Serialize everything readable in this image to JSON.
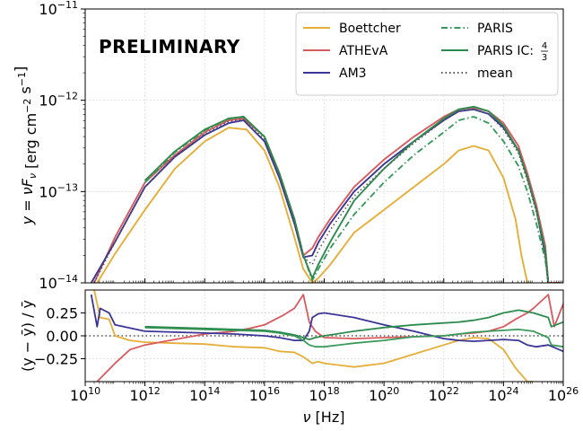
{
  "figure": {
    "watermark": "PRELIMINARY",
    "watermark_color": "#ec8f8f"
  },
  "chart_data": [
    {
      "type": "line",
      "panel": "top",
      "xlabel": "ν [Hz]",
      "ylabel": "y = νF_ν [erg cm⁻² s⁻¹]",
      "x_scale": "log",
      "y_scale": "log",
      "xlim": [
        10000000000.0,
        1e+26
      ],
      "ylim": [
        1e-14,
        1e-11
      ],
      "x_tick_exponents": [
        10,
        12,
        14,
        16,
        18,
        20,
        22,
        24,
        26
      ],
      "y_tick_exponents": [
        -11,
        -12,
        -13,
        -14
      ],
      "grid": true,
      "legend_position": "top-right",
      "series": [
        {
          "name": "Boettcher",
          "color": "#e5ae38",
          "dash": "solid",
          "log_x": [
            10.4,
            11,
            12,
            13,
            14,
            14.8,
            15.4,
            16,
            16.5,
            17,
            17.3,
            17.6,
            17.8,
            18.2,
            19,
            20,
            21,
            22,
            22.5,
            23,
            23.5,
            24,
            24.4,
            24.6,
            24.8
          ],
          "log_y": [
            -14.0,
            -13.68,
            -13.2,
            -12.75,
            -12.45,
            -12.3,
            -12.32,
            -12.55,
            -12.95,
            -13.5,
            -13.85,
            -14.0,
            -13.95,
            -13.8,
            -13.45,
            -13.2,
            -12.95,
            -12.7,
            -12.55,
            -12.5,
            -12.55,
            -12.85,
            -13.3,
            -13.7,
            -14.0
          ]
        },
        {
          "name": "ATHEvA",
          "color": "#d85a5e",
          "dash": "solid",
          "log_x": [
            10.3,
            11,
            12,
            13,
            14,
            14.8,
            15.3,
            16,
            16.5,
            17,
            17.3,
            17.6,
            17.8,
            18.2,
            19,
            20,
            21,
            22,
            22.5,
            23,
            23.5,
            24,
            24.5,
            24.8,
            25.1,
            25.4,
            25.5,
            25.9
          ],
          "log_y": [
            -14.0,
            -13.5,
            -12.9,
            -12.6,
            -12.35,
            -12.22,
            -12.2,
            -12.4,
            -12.8,
            -13.3,
            -13.7,
            -13.62,
            -13.5,
            -13.3,
            -12.95,
            -12.65,
            -12.4,
            -12.18,
            -12.1,
            -12.08,
            -12.12,
            -12.25,
            -12.5,
            -12.8,
            -13.15,
            -13.6,
            -14.0,
            -14.0
          ]
        },
        {
          "name": "AM3",
          "color": "#3b3596",
          "dash": "solid",
          "log_x": [
            10.2,
            11,
            12,
            13,
            14,
            14.8,
            15.3,
            16,
            16.5,
            17,
            17.3,
            17.6,
            17.8,
            18.2,
            19,
            20,
            21,
            22,
            22.5,
            23,
            23.5,
            24,
            24.5,
            24.8,
            25.1,
            25.4,
            25.5
          ],
          "log_y": [
            -14.0,
            -13.55,
            -12.95,
            -12.62,
            -12.38,
            -12.25,
            -12.22,
            -12.45,
            -12.85,
            -13.35,
            -13.72,
            -13.7,
            -13.56,
            -13.35,
            -13.0,
            -12.7,
            -12.45,
            -12.22,
            -12.12,
            -12.1,
            -12.15,
            -12.3,
            -12.55,
            -12.85,
            -13.2,
            -13.7,
            -14.0
          ]
        },
        {
          "name": "PARIS",
          "color": "#3a9a5c",
          "dash": "dashdot",
          "log_x": [
            12,
            13,
            14,
            14.8,
            15.3,
            16,
            16.5,
            17,
            17.3,
            17.6,
            17.8,
            18.2,
            19,
            20,
            21,
            22,
            22.5,
            23,
            23.5,
            24,
            24.5,
            24.8,
            25.1,
            25.4,
            25.5
          ],
          "log_y": [
            -12.9,
            -12.57,
            -12.33,
            -12.2,
            -12.18,
            -12.4,
            -12.8,
            -13.3,
            -13.7,
            -13.97,
            -13.85,
            -13.62,
            -13.25,
            -12.9,
            -12.6,
            -12.35,
            -12.22,
            -12.18,
            -12.25,
            -12.45,
            -12.72,
            -13.0,
            -13.35,
            -13.75,
            -14.0
          ]
        },
        {
          "name": "PARIS IC:4/3",
          "color": "#2e8b4e",
          "dash": "solid",
          "log_x": [
            12,
            13,
            14,
            14.8,
            15.3,
            16,
            16.5,
            17,
            17.3,
            17.6,
            17.8,
            18.2,
            19,
            20,
            21,
            22,
            22.5,
            23,
            23.5,
            24,
            24.5,
            24.8,
            25.1,
            25.4,
            25.5
          ],
          "log_y": [
            -12.88,
            -12.56,
            -12.32,
            -12.2,
            -12.18,
            -12.4,
            -12.8,
            -13.3,
            -13.7,
            -13.95,
            -13.8,
            -13.55,
            -13.1,
            -12.75,
            -12.45,
            -12.2,
            -12.1,
            -12.07,
            -12.12,
            -12.28,
            -12.55,
            -12.85,
            -13.2,
            -13.65,
            -14.0
          ]
        },
        {
          "name": "mean",
          "color": "#555555",
          "dash": "dotted",
          "log_x": [
            10.3,
            11,
            12,
            13,
            14,
            14.8,
            15.3,
            16,
            16.5,
            17,
            17.3,
            17.6,
            17.8,
            18.2,
            19,
            20,
            21,
            22,
            22.5,
            23,
            23.5,
            24,
            24.5,
            24.8,
            25.1,
            25.4,
            25.5
          ],
          "log_y": [
            -14.0,
            -13.55,
            -12.95,
            -12.62,
            -12.37,
            -12.23,
            -12.21,
            -12.43,
            -12.83,
            -13.33,
            -13.72,
            -13.8,
            -13.65,
            -13.42,
            -13.05,
            -12.75,
            -12.47,
            -12.22,
            -12.12,
            -12.1,
            -12.15,
            -12.32,
            -12.58,
            -12.88,
            -13.22,
            -13.7,
            -14.0
          ]
        }
      ],
      "legend": [
        {
          "label_text": "Boettcher",
          "series": "Boettcher",
          "column": 1
        },
        {
          "label_text": "ATHEvA",
          "series": "ATHEvA",
          "column": 1
        },
        {
          "label_text": "AM3",
          "series": "AM3",
          "column": 1
        },
        {
          "label_text": "PARIS",
          "series": "PARIS",
          "column": 2
        },
        {
          "label_text": "PARIS IC:",
          "label_frac_num": "4",
          "label_frac_den": "3",
          "series": "PARIS IC:4/3",
          "column": 2
        },
        {
          "label_text": "mean",
          "series": "mean",
          "column": 2
        }
      ]
    },
    {
      "type": "line",
      "panel": "bottom",
      "xlabel": "ν [Hz]",
      "ylabel": "(y − ȳ) / ȳ",
      "x_scale": "log",
      "xlim": [
        10000000000.0,
        1e+26
      ],
      "ylim": [
        -0.5,
        0.5
      ],
      "y_ticks": [
        0.25,
        0.0,
        -0.25
      ],
      "y_tick_labels": [
        "0.25",
        "0.00",
        "−0.25"
      ],
      "grid": true,
      "series": [
        {
          "name": "Boettcher",
          "color": "#e5ae38",
          "log_x": [
            10.3,
            10.5,
            10.8,
            11,
            11.5,
            12,
            13,
            14,
            15,
            16,
            16.5,
            17,
            17.3,
            17.6,
            17.8,
            18,
            19,
            20,
            21,
            22,
            22.5,
            23,
            23.5,
            24,
            24.4,
            24.8,
            25
          ],
          "rel": [
            0.5,
            0.2,
            0.18,
            0.0,
            -0.05,
            -0.07,
            -0.08,
            -0.09,
            -0.12,
            -0.13,
            -0.17,
            -0.18,
            -0.23,
            -0.3,
            -0.28,
            -0.3,
            -0.34,
            -0.3,
            -0.2,
            -0.1,
            -0.05,
            -0.02,
            -0.03,
            -0.15,
            -0.35,
            -0.5,
            -0.5
          ]
        },
        {
          "name": "ATHEvA",
          "color": "#d85a5e",
          "log_x": [
            10.4,
            10.7,
            11,
            11.5,
            12,
            13,
            14,
            15,
            15.5,
            16,
            16.3,
            16.6,
            17,
            17.3,
            17.5,
            17.7,
            18,
            19,
            20,
            21,
            22,
            22.5,
            23,
            23.5,
            24,
            24.4,
            24.8,
            25.0,
            25.5,
            25.7,
            26
          ],
          "rel": [
            -0.5,
            -0.4,
            -0.3,
            -0.15,
            -0.1,
            -0.04,
            0.02,
            0.05,
            0.08,
            0.12,
            0.17,
            0.22,
            0.3,
            0.45,
            0.15,
            0.05,
            -0.02,
            -0.03,
            -0.02,
            -0.01,
            0.0,
            0.02,
            0.03,
            0.05,
            0.1,
            0.18,
            0.25,
            0.3,
            0.45,
            0.1,
            0.35
          ]
        },
        {
          "name": "AM3",
          "color": "#3b3596",
          "log_x": [
            10.2,
            10.4,
            10.5,
            10.8,
            11,
            12,
            13,
            14,
            15,
            16,
            16.5,
            17,
            17.3,
            17.5,
            17.6,
            17.8,
            18,
            19,
            20,
            21,
            22,
            22.5,
            23,
            23.5,
            24,
            24.5,
            24.8,
            25.1,
            25.5,
            26
          ],
          "rel": [
            0.45,
            0.1,
            0.3,
            0.25,
            0.12,
            0.05,
            0.04,
            0.03,
            0.02,
            0.0,
            -0.02,
            -0.05,
            -0.05,
            0.05,
            0.2,
            0.24,
            0.25,
            0.2,
            0.12,
            0.05,
            -0.03,
            -0.05,
            -0.06,
            -0.05,
            -0.04,
            -0.05,
            -0.1,
            -0.12,
            -0.1,
            -0.17
          ]
        },
        {
          "name": "PARIS",
          "color": "#3a9a5c",
          "log_x": [
            12,
            13,
            14,
            15,
            16,
            16.5,
            17,
            17.3,
            17.5,
            17.7,
            18,
            19,
            20,
            21,
            22,
            22.5,
            23,
            23.5,
            24,
            24.5,
            25,
            25.5,
            25.6,
            26
          ],
          "rel": [
            0.09,
            0.08,
            0.07,
            0.06,
            0.05,
            0.03,
            0.0,
            -0.05,
            -0.1,
            -0.12,
            -0.12,
            -0.08,
            -0.05,
            -0.01,
            0.0,
            0.02,
            0.04,
            0.05,
            0.06,
            0.07,
            0.05,
            -0.02,
            -0.1,
            -0.12
          ]
        },
        {
          "name": "PARIS IC:4/3",
          "color": "#2e8b4e",
          "log_x": [
            12,
            13,
            14,
            15,
            16,
            16.5,
            17,
            17.3,
            17.5,
            17.7,
            18,
            19,
            20,
            21,
            22,
            22.5,
            23,
            23.5,
            24,
            24.5,
            25,
            25.5,
            25.6,
            26
          ],
          "rel": [
            0.1,
            0.09,
            0.08,
            0.07,
            0.06,
            0.04,
            0.01,
            -0.02,
            -0.04,
            -0.02,
            0.0,
            0.05,
            0.09,
            0.12,
            0.14,
            0.15,
            0.17,
            0.2,
            0.25,
            0.28,
            0.25,
            0.2,
            0.1,
            0.15
          ]
        }
      ],
      "reference_line": {
        "name": "mean",
        "value": 0.0,
        "color": "#555555",
        "dash": "dotted"
      }
    }
  ]
}
